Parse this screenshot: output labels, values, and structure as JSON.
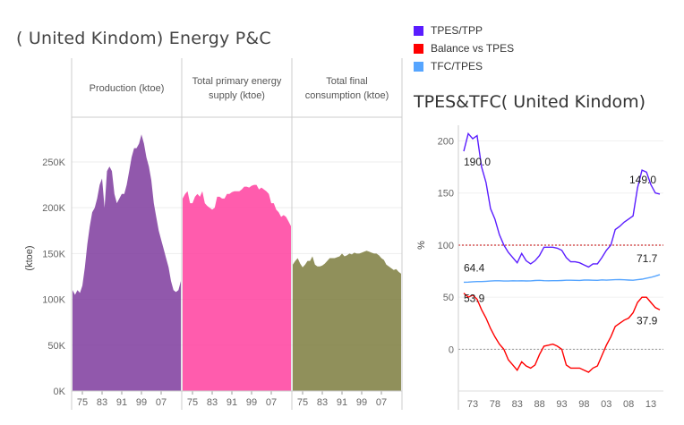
{
  "page_title": "( United Kindom) Energy   P&C",
  "legend": [
    {
      "label": "TPES/TPP",
      "color": "#5a1dff"
    },
    {
      "label": "Balance vs TPES",
      "color": "#ff0000"
    },
    {
      "label": "TFC/TPES",
      "color": "#56a5ff"
    }
  ],
  "chart_data": [
    {
      "type": "area",
      "panels": [
        {
          "label": "Production (ktoe)",
          "color": "#7e3b9e"
        },
        {
          "label": "Total primary energy supply (ktoe)",
          "color": "#ff3f9f"
        },
        {
          "label": "Total final consumption (ktoe)",
          "color": "#7c7d3e"
        }
      ],
      "ylabel": "(ktoe)",
      "ylim": [
        0,
        290000
      ],
      "yticks": [
        "0K",
        "50K",
        "100K",
        "150K",
        "200K",
        "250K"
      ],
      "ytick_values": [
        0,
        50000,
        100000,
        150000,
        200000,
        250000
      ],
      "xticks": [
        "75",
        "83",
        "91",
        "99",
        "07"
      ],
      "xtick_years": [
        1975,
        1983,
        1991,
        1999,
        2007
      ],
      "x": [
        1971,
        1972,
        1973,
        1974,
        1975,
        1976,
        1977,
        1978,
        1979,
        1980,
        1981,
        1982,
        1983,
        1984,
        1985,
        1986,
        1987,
        1988,
        1989,
        1990,
        1991,
        1992,
        1993,
        1994,
        1995,
        1996,
        1997,
        1998,
        1999,
        2000,
        2001,
        2002,
        2003,
        2004,
        2005,
        2006,
        2007,
        2008,
        2009,
        2010,
        2011,
        2012,
        2013,
        2014,
        2015
      ],
      "series": [
        {
          "values": [
            110000,
            105000,
            110000,
            107000,
            115000,
            135000,
            160000,
            180000,
            195000,
            200000,
            210000,
            225000,
            232000,
            200000,
            240000,
            245000,
            240000,
            215000,
            205000,
            210000,
            215000,
            215000,
            225000,
            240000,
            255000,
            265000,
            265000,
            270000,
            280000,
            270000,
            255000,
            245000,
            230000,
            205000,
            190000,
            175000,
            165000,
            155000,
            145000,
            135000,
            120000,
            110000,
            108000,
            110000,
            120000
          ]
        },
        {
          "values": [
            210000,
            215000,
            218000,
            205000,
            205000,
            212000,
            215000,
            212000,
            218000,
            205000,
            202000,
            200000,
            198000,
            200000,
            212000,
            212000,
            210000,
            210000,
            215000,
            215000,
            217000,
            218000,
            218000,
            218000,
            220000,
            223000,
            223000,
            222000,
            224000,
            225000,
            225000,
            220000,
            222000,
            220000,
            218000,
            215000,
            205000,
            205000,
            198000,
            195000,
            190000,
            192000,
            190000,
            185000,
            180000
          ]
        },
        {
          "values": [
            138000,
            142000,
            145000,
            139000,
            135000,
            138000,
            142000,
            142000,
            147000,
            138000,
            136000,
            136000,
            137000,
            139000,
            142000,
            145000,
            145000,
            145000,
            146000,
            147000,
            150000,
            147000,
            148000,
            150000,
            149000,
            151000,
            150000,
            150000,
            151000,
            152000,
            153000,
            152000,
            151000,
            150000,
            150000,
            148000,
            145000,
            143000,
            138000,
            136000,
            134000,
            132000,
            133000,
            130000,
            128000
          ]
        }
      ]
    },
    {
      "type": "line",
      "title": "TPES&TFC( United Kindom)",
      "ylabel": "%",
      "ylim": [
        -40,
        215
      ],
      "yticks": [
        0,
        50,
        100,
        150,
        200
      ],
      "xticks": [
        "73",
        "78",
        "83",
        "88",
        "93",
        "98",
        "03",
        "08",
        "13"
      ],
      "xtick_years": [
        1973,
        1978,
        1983,
        1988,
        1993,
        1998,
        2003,
        2008,
        2013
      ],
      "x": [
        1971,
        1972,
        1973,
        1974,
        1975,
        1976,
        1977,
        1978,
        1979,
        1980,
        1981,
        1982,
        1983,
        1984,
        1985,
        1986,
        1987,
        1988,
        1989,
        1990,
        1991,
        1992,
        1993,
        1994,
        1995,
        1996,
        1997,
        1998,
        1999,
        2000,
        2001,
        2002,
        2003,
        2004,
        2005,
        2006,
        2007,
        2008,
        2009,
        2010,
        2011,
        2012,
        2013,
        2014,
        2015
      ],
      "reference_lines": [
        {
          "value": 100,
          "color": "#c00000"
        },
        {
          "value": 0,
          "color": "#999999"
        }
      ],
      "series": [
        {
          "name": "TPES/TPP",
          "color": "#5a1dff",
          "values": [
            190,
            207,
            202,
            205,
            175,
            160,
            135,
            125,
            110,
            100,
            93,
            88,
            83,
            92,
            85,
            82,
            85,
            90,
            98,
            98,
            98,
            97,
            95,
            88,
            84,
            84,
            83,
            81,
            79,
            82,
            82,
            88,
            95,
            100,
            115,
            118,
            122,
            125,
            128,
            155,
            172,
            170,
            158,
            150,
            149
          ],
          "labels": [
            {
              "index": 0,
              "text": "190.0"
            },
            {
              "index": 44,
              "text": "149.0"
            }
          ]
        },
        {
          "name": "TFC/TPES",
          "color": "#56a5ff",
          "values": [
            64.4,
            64.5,
            64.8,
            65,
            65,
            65.3,
            65.5,
            65.8,
            65.8,
            65.5,
            65.5,
            65.8,
            65.7,
            65.8,
            65.6,
            65.7,
            66,
            66.2,
            65.9,
            65.8,
            65.9,
            65.9,
            66,
            66.3,
            66.3,
            66.2,
            66.1,
            66.5,
            66.5,
            66.3,
            66.2,
            66.6,
            66.4,
            66.6,
            66.8,
            66.9,
            66.7,
            66.5,
            66.3,
            66.8,
            67.3,
            68.3,
            69,
            70.2,
            71.7
          ],
          "labels": [
            {
              "index": 0,
              "text": "64.4"
            },
            {
              "index": 44,
              "text": "71.7"
            }
          ]
        },
        {
          "name": "Balance vs TPES",
          "color": "#ff0000",
          "values": [
            53.9,
            50,
            52,
            48,
            38,
            30,
            20,
            12,
            5,
            0,
            -10,
            -15,
            -20,
            -12,
            -16,
            -18,
            -15,
            -5,
            3,
            4,
            5,
            3,
            0,
            -15,
            -18,
            -18,
            -18,
            -20,
            -22,
            -18,
            -16,
            -6,
            4,
            12,
            22,
            25,
            28,
            30,
            35,
            45,
            50,
            50,
            45,
            40,
            37.9
          ],
          "labels": [
            {
              "index": 0,
              "text": "53.9"
            },
            {
              "index": 44,
              "text": "37.9"
            }
          ]
        }
      ]
    }
  ]
}
